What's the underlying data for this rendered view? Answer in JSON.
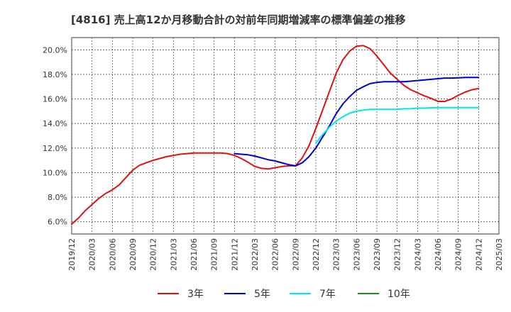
{
  "chart_data": {
    "type": "line",
    "title": "[4816]  売上高12か月移動合計の対前年同期増減率の標準偏差の推移",
    "xlabel": "",
    "ylabel": "",
    "x_ticks": [
      "2019/12",
      "2020/03",
      "2020/06",
      "2020/09",
      "2020/12",
      "2021/03",
      "2021/06",
      "2021/09",
      "2021/12",
      "2022/03",
      "2022/06",
      "2022/09",
      "2022/12",
      "2023/03",
      "2023/06",
      "2023/09",
      "2023/12",
      "2024/03",
      "2024/06",
      "2024/09",
      "2024/12",
      "2025/03"
    ],
    "y_ticks": [
      "6.0%",
      "8.0%",
      "10.0%",
      "12.0%",
      "14.0%",
      "16.0%",
      "18.0%",
      "20.0%"
    ],
    "ylim": [
      5.0,
      21.0
    ],
    "grid": true,
    "legend_position": "bottom",
    "series": [
      {
        "name": "3年",
        "color": "#dd1111",
        "x": [
          "2019/12",
          "2020/01",
          "2020/02",
          "2020/03",
          "2020/04",
          "2020/05",
          "2020/06",
          "2020/07",
          "2020/08",
          "2020/09",
          "2020/10",
          "2020/11",
          "2020/12",
          "2021/01",
          "2021/02",
          "2021/03",
          "2021/04",
          "2021/05",
          "2021/06",
          "2021/07",
          "2021/08",
          "2021/09",
          "2021/10",
          "2021/11",
          "2021/12",
          "2022/01",
          "2022/02",
          "2022/03",
          "2022/04",
          "2022/05",
          "2022/06",
          "2022/07",
          "2022/08",
          "2022/09",
          "2022/10",
          "2022/11",
          "2022/12",
          "2023/01",
          "2023/02",
          "2023/03",
          "2023/04",
          "2023/05",
          "2023/06",
          "2023/07",
          "2023/08",
          "2023/09",
          "2023/10",
          "2023/11",
          "2023/12",
          "2024/01",
          "2024/02",
          "2024/03",
          "2024/04",
          "2024/05",
          "2024/06",
          "2024/07",
          "2024/08",
          "2024/09",
          "2024/10",
          "2024/11",
          "2024/12"
        ],
        "values": [
          5.8,
          6.3,
          6.9,
          7.4,
          7.9,
          8.3,
          8.6,
          9.0,
          9.6,
          10.2,
          10.6,
          10.8,
          11.0,
          11.15,
          11.3,
          11.4,
          11.5,
          11.55,
          11.6,
          11.6,
          11.6,
          11.6,
          11.6,
          11.55,
          11.4,
          11.15,
          10.85,
          10.5,
          10.35,
          10.3,
          10.4,
          10.5,
          10.55,
          10.55,
          11.2,
          12.2,
          13.6,
          15.1,
          16.6,
          18.1,
          19.2,
          19.9,
          20.3,
          20.35,
          20.1,
          19.5,
          18.8,
          18.1,
          17.6,
          17.1,
          16.75,
          16.5,
          16.25,
          16.05,
          15.8,
          15.8,
          16.0,
          16.3,
          16.55,
          16.75,
          16.85
        ]
      },
      {
        "name": "5年",
        "color": "#0000cc",
        "x": [
          "2021/12",
          "2022/01",
          "2022/02",
          "2022/03",
          "2022/04",
          "2022/05",
          "2022/06",
          "2022/07",
          "2022/08",
          "2022/09",
          "2022/10",
          "2022/11",
          "2022/12",
          "2023/01",
          "2023/02",
          "2023/03",
          "2023/04",
          "2023/05",
          "2023/06",
          "2023/07",
          "2023/08",
          "2023/09",
          "2023/10",
          "2023/11",
          "2023/12",
          "2024/01",
          "2024/02",
          "2024/03",
          "2024/04",
          "2024/05",
          "2024/06",
          "2024/07",
          "2024/08",
          "2024/09",
          "2024/10",
          "2024/11",
          "2024/12"
        ],
        "values": [
          11.55,
          11.5,
          11.45,
          11.35,
          11.2,
          11.05,
          10.95,
          10.8,
          10.65,
          10.55,
          10.8,
          11.3,
          12.0,
          12.9,
          13.8,
          14.8,
          15.6,
          16.2,
          16.7,
          17.0,
          17.25,
          17.35,
          17.4,
          17.4,
          17.4,
          17.4,
          17.45,
          17.5,
          17.55,
          17.6,
          17.65,
          17.7,
          17.7,
          17.72,
          17.75,
          17.75,
          17.75
        ]
      },
      {
        "name": "7年",
        "color": "#00e5ee",
        "x": [
          "2022/12",
          "2023/01",
          "2023/02",
          "2023/03",
          "2023/04",
          "2023/05",
          "2023/06",
          "2023/07",
          "2023/08",
          "2023/09",
          "2023/10",
          "2023/11",
          "2023/12",
          "2024/01",
          "2024/02",
          "2024/03",
          "2024/04",
          "2024/05",
          "2024/06",
          "2024/07",
          "2024/08",
          "2024/09",
          "2024/10",
          "2024/11",
          "2024/12"
        ],
        "values": [
          12.4,
          13.1,
          13.7,
          14.2,
          14.55,
          14.85,
          15.0,
          15.1,
          15.15,
          15.15,
          15.15,
          15.15,
          15.15,
          15.2,
          15.2,
          15.25,
          15.25,
          15.28,
          15.3,
          15.3,
          15.3,
          15.3,
          15.3,
          15.3,
          15.3
        ]
      },
      {
        "name": "10年",
        "color": "#228b22",
        "x": [],
        "values": []
      }
    ],
    "legend": [
      "3年",
      "5年",
      "7年",
      "10年"
    ]
  }
}
